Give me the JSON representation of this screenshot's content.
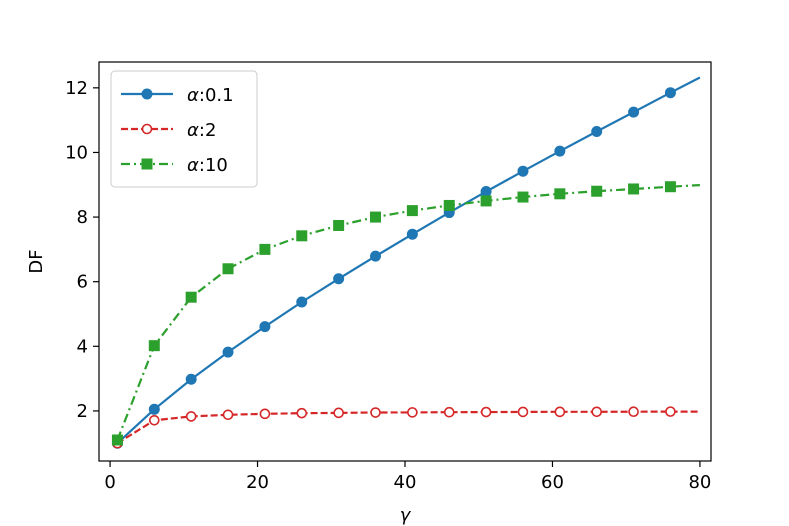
{
  "chart_data": {
    "type": "line",
    "title": "",
    "xlabel": "γ",
    "ylabel": "DF",
    "xlim": [
      -1.5,
      81.5
    ],
    "ylim": [
      0.45,
      12.8
    ],
    "xticks": [
      0,
      20,
      40,
      60,
      80
    ],
    "yticks": [
      2,
      4,
      6,
      8,
      10,
      12
    ],
    "grid": false,
    "legend_position": "top-left",
    "x_marker_points": [
      1,
      6,
      11,
      16,
      21,
      26,
      31,
      36,
      41,
      46,
      51,
      56,
      61,
      66,
      71,
      76
    ],
    "series": [
      {
        "name": "α:0.1",
        "name_symbol": "α",
        "name_value": ":0.1",
        "color": "#1f77b4",
        "line_style": "solid",
        "marker": "circle-filled",
        "x": [
          1,
          6,
          11,
          16,
          21,
          26,
          31,
          36,
          41,
          46,
          51,
          56,
          61,
          66,
          71,
          76,
          80
        ],
        "values": [
          1.0,
          2.05,
          2.98,
          3.82,
          4.61,
          5.37,
          6.09,
          6.79,
          7.47,
          8.14,
          8.79,
          9.42,
          10.04,
          10.65,
          11.25,
          11.85,
          12.32
        ]
      },
      {
        "name": "α:2",
        "name_symbol": "α",
        "name_value": ":2",
        "color": "#d62728",
        "line_style": "dashed",
        "marker": "circle-open",
        "x": [
          1,
          6,
          11,
          16,
          21,
          26,
          31,
          36,
          41,
          46,
          51,
          56,
          61,
          66,
          71,
          76,
          80
        ],
        "values": [
          1.0,
          1.71,
          1.83,
          1.88,
          1.91,
          1.93,
          1.94,
          1.95,
          1.955,
          1.96,
          1.965,
          1.97,
          1.972,
          1.974,
          1.976,
          1.978,
          1.98
        ]
      },
      {
        "name": "α:10",
        "name_symbol": "α",
        "name_value": ":10",
        "color": "#2ca02c",
        "line_style": "dashdot",
        "marker": "square-filled",
        "x": [
          1,
          6,
          11,
          16,
          21,
          26,
          31,
          36,
          41,
          46,
          51,
          56,
          61,
          66,
          71,
          76,
          80
        ],
        "values": [
          1.1,
          4.02,
          5.52,
          6.4,
          7.0,
          7.42,
          7.74,
          8.0,
          8.2,
          8.36,
          8.5,
          8.62,
          8.72,
          8.8,
          8.87,
          8.94,
          8.99
        ]
      }
    ]
  }
}
